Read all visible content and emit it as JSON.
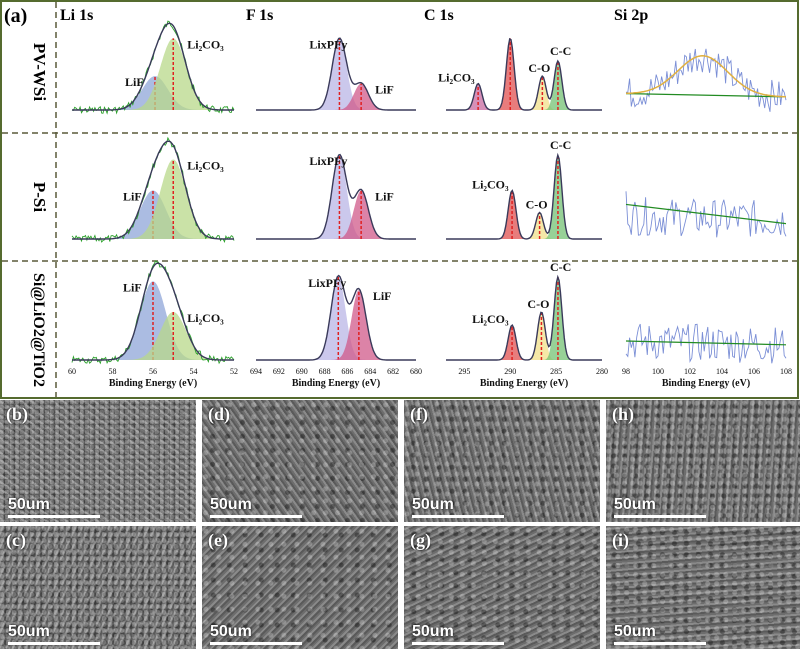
{
  "panel_label": "(a)",
  "column_titles": [
    "Li 1s",
    "F 1s",
    "C 1s",
    "Si 2p"
  ],
  "row_labels": [
    "PV-WSi",
    "P-Si",
    "Si@LiO2@TiO2"
  ],
  "colors": {
    "frame": "#556b2f",
    "divider": "#5a5a3a",
    "envelope": "#3a3a5a",
    "raw_green": "#2aa02a",
    "raw_blue": "#7b8fd6",
    "li2co3_fill": "#b8d88a",
    "lif_fill": "#8fa6d8",
    "lixpfy_fill": "#b9b6e6",
    "lif_f_fill": "#d05a8a",
    "c_li2co3_fill": "#c86aa0",
    "co_fill": "#f2e08a",
    "cc_fill": "#74c274",
    "c_red_fill": "#e05050",
    "baseline": "#228b22",
    "si_fit": "#e0b040",
    "marker": "#e02020"
  },
  "chart_data": [
    {
      "type": "line",
      "title": "Li 1s",
      "xlabel": "Binding Energy (eV)",
      "xlim": [
        60,
        52
      ],
      "xticks": [
        "60",
        "58",
        "56",
        "54",
        "52"
      ],
      "components": [
        {
          "name": "LiF",
          "peak_eV": 56.0
        },
        {
          "name": "Li2CO3",
          "peak_eV": 55.0
        }
      ],
      "series_by_row": [
        {
          "row": "PV-WSi",
          "peak_positions_eV": [
            55.9,
            55.0
          ],
          "heights": [
            0.45,
            0.95
          ],
          "labels": [
            "LiF",
            "Li₂CO₃"
          ]
        },
        {
          "row": "P-Si",
          "peak_positions_eV": [
            56.0,
            55.0
          ],
          "heights": [
            0.55,
            0.9
          ],
          "labels": [
            "LiF",
            "Li₂CO₃"
          ]
        },
        {
          "row": "Si@LiO2@TiO2",
          "peak_positions_eV": [
            56.0,
            55.0
          ],
          "heights": [
            0.9,
            0.55
          ],
          "labels": [
            "LiF",
            "Li₂CO₃"
          ]
        }
      ]
    },
    {
      "type": "line",
      "title": "F 1s",
      "xlabel": "Binding Energy (eV)",
      "xlim": [
        694,
        680
      ],
      "xticks": [
        "694",
        "692",
        "690",
        "688",
        "686",
        "684",
        "682",
        "680"
      ],
      "series_by_row": [
        {
          "row": "PV-WSi",
          "peak_positions_eV": [
            686.7,
            684.8
          ],
          "heights": [
            0.95,
            0.35
          ],
          "labels": [
            "LixPFy",
            "LiF"
          ]
        },
        {
          "row": "P-Si",
          "peak_positions_eV": [
            686.7,
            684.8
          ],
          "heights": [
            0.95,
            0.55
          ],
          "labels": [
            "LixPFy",
            "LiF"
          ]
        },
        {
          "row": "Si@LiO2@TiO2",
          "peak_positions_eV": [
            686.8,
            685.0
          ],
          "heights": [
            0.95,
            0.8
          ],
          "labels": [
            "LixPFy",
            "LiF"
          ]
        }
      ]
    },
    {
      "type": "line",
      "title": "C 1s",
      "xlabel": "Binding Energy (eV)",
      "xlim": [
        297,
        280
      ],
      "xticks": [
        "295",
        "290",
        "285",
        "280"
      ],
      "series_by_row": [
        {
          "row": "PV-WSi",
          "peak_positions_eV": [
            293.5,
            290.0,
            286.5,
            284.8
          ],
          "heights": [
            0.35,
            0.95,
            0.45,
            0.65
          ],
          "labels": [
            "Li₂CO₃",
            "",
            "C-O",
            "C-C"
          ]
        },
        {
          "row": "P-Si",
          "peak_positions_eV": [
            289.8,
            286.8,
            284.8
          ],
          "heights": [
            0.55,
            0.3,
            0.95
          ],
          "labels": [
            "Li₂CO₃",
            "C-O",
            "C-C"
          ]
        },
        {
          "row": "Si@LiO2@TiO2",
          "peak_positions_eV": [
            289.8,
            286.6,
            284.8
          ],
          "heights": [
            0.4,
            0.55,
            0.95
          ],
          "labels": [
            "Li₂CO₃",
            "C-O",
            "C-C"
          ]
        }
      ]
    },
    {
      "type": "line",
      "title": "Si 2p",
      "xlabel": "Binding Energy (eV)",
      "xlim": [
        98,
        108
      ],
      "xticks": [
        "98",
        "100",
        "102",
        "104",
        "106",
        "108"
      ],
      "series_by_row": [
        {
          "row": "PV-WSi",
          "peak_positions_eV": [
            102.8
          ],
          "heights": [
            0.6
          ],
          "labels": []
        },
        {
          "row": "P-Si",
          "peak_positions_eV": [],
          "heights": [],
          "labels": []
        },
        {
          "row": "Si@LiO2@TiO2",
          "peak_positions_eV": [],
          "heights": [],
          "labels": []
        }
      ]
    }
  ],
  "sem_panels": [
    {
      "label": "(b)",
      "scale": "50um"
    },
    {
      "label": "(d)",
      "scale": "50um"
    },
    {
      "label": "(f)",
      "scale": "50um"
    },
    {
      "label": "(h)",
      "scale": "50um"
    },
    {
      "label": "(c)",
      "scale": "50um"
    },
    {
      "label": "(e)",
      "scale": "50um"
    },
    {
      "label": "(g)",
      "scale": "50um"
    },
    {
      "label": "(i)",
      "scale": "50um"
    }
  ]
}
